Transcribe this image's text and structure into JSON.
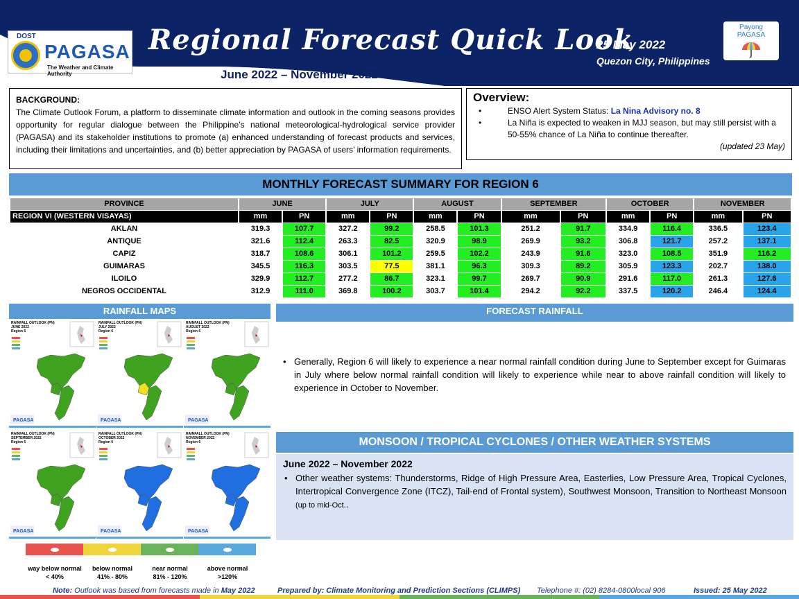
{
  "header": {
    "logo_dost": "DOST",
    "logo_name": "PAGASA",
    "logo_tagline": "The Weather and Climate Authority",
    "title": "Regional Forecast Quick Look",
    "subtitle": "June 2022 – November 2022",
    "date": "25 May 2022",
    "place": "Quezon City, Philippines",
    "payong_line1": "Payong",
    "payong_line2": "PAGASA"
  },
  "background": {
    "heading": "BACKGROUND:",
    "text": "The Climate Outlook Forum, a platform to disseminate climate information and outlook in the coming seasons provides opportunity for regular dialogue between the Philippine’s national meteorological-hydrological service provider (PAGASA) and its stakeholder institutions to promote (a) enhanced understanding of forecast products and services, including their limitations and uncertainties, and (b) better appreciation by PAGASA of users’ information requirements."
  },
  "overview": {
    "heading": "Overview:",
    "bullet": "•",
    "item1_prefix": "ENSO Alert System Status: ",
    "item1_advisory": "La Nina Advisory no. 8",
    "item2": "La Niña is expected to weaken in MJJ season, but may still persist with a 50-55% chance of La Niña to continue thereafter.",
    "updated": "(updated 23 May)"
  },
  "summary": {
    "title": "MONTHLY FORECAST SUMMARY FOR REGION 6",
    "province_header": "PROVINCE",
    "region_label": "REGION VI (WESTERN VISAYAS)",
    "mm_label": "mm",
    "pn_label": "PN",
    "months": [
      "JUNE",
      "JULY",
      "AUGUST",
      "SEPTEMBER",
      "OCTOBER",
      "NOVEMBER"
    ],
    "rows": [
      {
        "province": "AKLAN",
        "values": [
          "319.3",
          "107.7",
          "327.2",
          "99.2",
          "258.5",
          "101.3",
          "251.2",
          "91.7",
          "334.9",
          "116.4",
          "336.5",
          "123.4"
        ]
      },
      {
        "province": "ANTIQUE",
        "values": [
          "321.6",
          "112.4",
          "263.3",
          "82.5",
          "320.9",
          "98.9",
          "269.9",
          "93.2",
          "306.8",
          "121.7",
          "257.2",
          "137.1"
        ]
      },
      {
        "province": "CAPIZ",
        "values": [
          "318.7",
          "108.6",
          "306.1",
          "101.2",
          "259.5",
          "102.2",
          "243.9",
          "91.6",
          "323.0",
          "108.5",
          "351.9",
          "116.2"
        ]
      },
      {
        "province": "GUIMARAS",
        "values": [
          "345.5",
          "116.3",
          "303.5",
          "77.5",
          "381.1",
          "96.3",
          "309.3",
          "89.2",
          "305.9",
          "123.3",
          "202.7",
          "138.0"
        ]
      },
      {
        "province": "ILOILO",
        "values": [
          "329.9",
          "112.7",
          "277.2",
          "86.7",
          "323.1",
          "99.7",
          "269.7",
          "90.9",
          "291.6",
          "117.0",
          "261.3",
          "127.6"
        ]
      },
      {
        "province": "NEGROS OCCIDENTAL",
        "values": [
          "312.9",
          "111.0",
          "369.8",
          "100.2",
          "303.7",
          "101.4",
          "294.2",
          "92.2",
          "337.5",
          "120.2",
          "246.4",
          "124.4"
        ]
      }
    ],
    "pn_colors": [
      [
        "green",
        "green",
        "green",
        "green",
        "green",
        "blue"
      ],
      [
        "green",
        "green",
        "green",
        "green",
        "blue",
        "blue"
      ],
      [
        "green",
        "green",
        "green",
        "green",
        "green",
        "green"
      ],
      [
        "green",
        "yellow",
        "green",
        "green",
        "blue",
        "blue"
      ],
      [
        "green",
        "green",
        "green",
        "green",
        "green",
        "blue"
      ],
      [
        "green",
        "green",
        "green",
        "green",
        "blue",
        "blue"
      ]
    ]
  },
  "rainfall_maps": {
    "title": "RAINFALL MAPS",
    "maps": [
      {
        "l1": "RAINFALL OUTLOOK (PN)",
        "l2": "JUNE 2022",
        "l3": "Region 6",
        "color": "#3fa31f"
      },
      {
        "l1": "RAINFALL OUTLOOK (PN)",
        "l2": "JULY 2022",
        "l3": "Region 6",
        "color": "#3fa31f"
      },
      {
        "l1": "RAINFALL OUTLOOK (PN)",
        "l2": "AUGUST 2022",
        "l3": "Region 6",
        "color": "#3fa31f"
      },
      {
        "l1": "RAINFALL OUTLOOK (PN)",
        "l2": "SEPTEMBER 2022",
        "l3": "Region 6",
        "color": "#3fa31f"
      },
      {
        "l1": "RAINFALL OUTLOOK (PN)",
        "l2": "OCTOBER 2022",
        "l3": "Region 6",
        "color": "#1f6fe0"
      },
      {
        "l1": "RAINFALL OUTLOOK (PN)",
        "l2": "NOVEMBER 2022",
        "l3": "Region 6",
        "color": "#1f6fe0"
      }
    ],
    "legend": [
      {
        "label": "way below normal",
        "range": "< 40%",
        "color": "#e8534d"
      },
      {
        "label": "below normal",
        "range": "41% -  80%",
        "color": "#f0d43c"
      },
      {
        "label": "near normal",
        "range": "81% - 120%",
        "color": "#6bb35a"
      },
      {
        "label": "above normal",
        "range": ">120%",
        "color": "#5aa7e0"
      }
    ]
  },
  "forecast_rainfall": {
    "title": "FORECAST RAINFALL",
    "bullet": "•",
    "text": "Generally, Region 6 will likely to experience a near normal rainfall condition during June to September except for Guimaras in July where below normal rainfall condition will likely to experience while near to above rainfall condition will likely to experience in October to November."
  },
  "monsoon": {
    "title": "MONSOON / TROPICAL CYCLONES / OTHER WEATHER SYSTEMS",
    "period": "June 2022 – November 2022",
    "bullet": "•",
    "text": "Other weather systems: Thunderstorms,  Ridge of High Pressure Area,  Easterlies, Low Pressure Area, Tropical Cyclones, Intertropical Convergence Zone (ITCZ), Tail-end of Frontal system), Southwest Monsoon, Transition to Northeast Monsoon",
    "note": "(up to mid-Oct.",
    "note_end": "."
  },
  "footer": {
    "note_label": "Note:",
    "note_text": " Outlook was based from forecasts made in ",
    "note_month": "May 2022",
    "prepared": "Prepared by: Climate Monitoring and Prediction Sections (CLIMPS)",
    "telephone": "Telephone #: (02) 8284-0800local 906",
    "issued": "Issued: 25 May 2022"
  },
  "colors": {
    "header_navy": "#0c2466",
    "section_blue": "#5b9bd5",
    "pn_green": "#22ee22",
    "pn_yellow": "#ffff00",
    "pn_blue": "#2aa4e8"
  }
}
